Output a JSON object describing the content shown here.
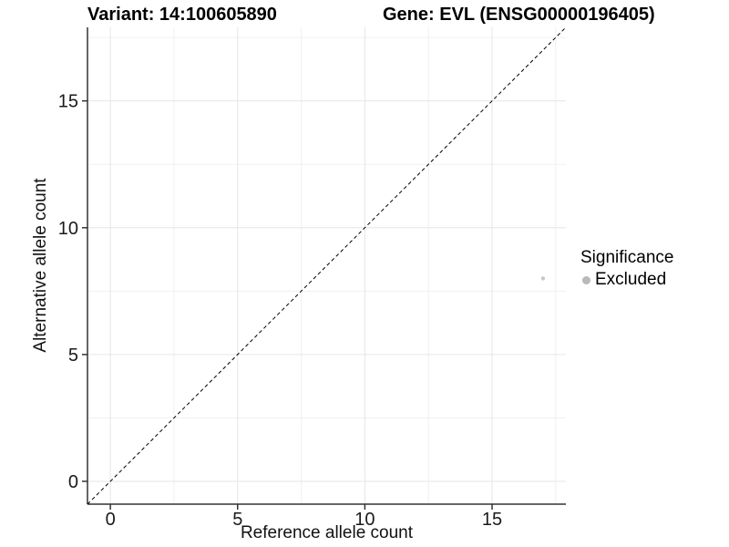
{
  "chart_data": {
    "type": "scatter",
    "title_left": "Variant: 14:100605890",
    "title_right": "Gene: EVL (ENSG00000196405)",
    "xlabel": "Reference allele count",
    "ylabel": "Alternative allele count",
    "xlim": [
      -0.9,
      17.9
    ],
    "ylim": [
      -0.9,
      17.9
    ],
    "x_ticks": [
      0,
      5,
      10,
      15
    ],
    "y_ticks": [
      0,
      5,
      10,
      15
    ],
    "x_minor_ticks": [
      2.5,
      7.5,
      12.5,
      17.5
    ],
    "y_minor_ticks": [
      2.5,
      7.5,
      12.5,
      17.5
    ],
    "grid": true,
    "points": [
      {
        "x": 17,
        "y": 8,
        "series": "Excluded",
        "color": "#c8c8c8",
        "radius": 2.2
      }
    ],
    "reference_line": {
      "type": "identity",
      "style": "dashed",
      "color": "#000000"
    },
    "legend": {
      "title": "Significance",
      "position": "right",
      "items": [
        {
          "label": "Excluded",
          "color": "#b9b9b9"
        }
      ]
    },
    "style": {
      "axis_color": "#333333",
      "major_grid_color": "#e6e6e6",
      "minor_grid_color": "#f0f0f0",
      "tick_label_color": "#1a1a1a"
    }
  }
}
